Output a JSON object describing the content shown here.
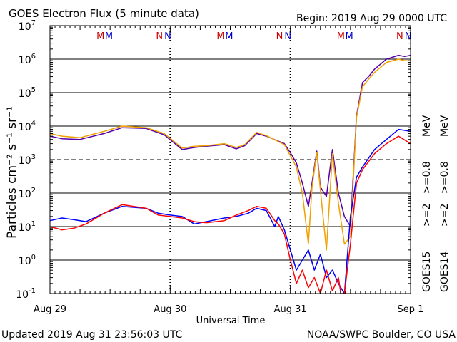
{
  "header": {
    "title": "GOES Electron Flux (5 minute data)",
    "begin": "Begin: 2019 Aug 29 0000 UTC"
  },
  "footer": {
    "updated": "Updated 2019 Aug 31 23:56:03 UTC",
    "credit": "NOAA/SWPC Boulder, CO USA"
  },
  "colors": {
    "goes15_ge08": "#5500aa",
    "goes14_ge08": "#f0a000",
    "goes15_ge2": "#0000ff",
    "goes14_ge2": "#ff0000",
    "marker_M": "#cc0000",
    "marker_N": "#0000cc"
  },
  "chart_data": {
    "type": "line",
    "y_scale": "log",
    "ylim": [
      0.1,
      10000000
    ],
    "y_ticks": [
      {
        "label_base": "10",
        "exp": "-1"
      },
      {
        "label_base": "10",
        "exp": "0"
      },
      {
        "label_base": "10",
        "exp": "1"
      },
      {
        "label_base": "10",
        "exp": "2"
      },
      {
        "label_base": "10",
        "exp": "3"
      },
      {
        "label_base": "10",
        "exp": "4"
      },
      {
        "label_base": "10",
        "exp": "5"
      },
      {
        "label_base": "10",
        "exp": "6"
      },
      {
        "label_base": "10",
        "exp": "7"
      }
    ],
    "ylabel": "Particles cm⁻² s⁻¹ sr⁻¹",
    "xlabel": "Universal Time",
    "x_ticks": [
      "Aug 29",
      "Aug 30",
      "Aug 31",
      "Sep 1"
    ],
    "xlim_days": [
      0,
      3
    ],
    "threshold_line": 1000,
    "magnetopause_markers": [
      {
        "label": "M",
        "day": 0.42,
        "color": "#cc0000"
      },
      {
        "label": "M",
        "day": 0.49,
        "color": "#0000cc"
      },
      {
        "label": "N",
        "day": 0.91,
        "color": "#cc0000"
      },
      {
        "label": "N",
        "day": 0.98,
        "color": "#0000cc"
      },
      {
        "label": "M",
        "day": 1.42,
        "color": "#cc0000"
      },
      {
        "label": "M",
        "day": 1.49,
        "color": "#0000cc"
      },
      {
        "label": "N",
        "day": 1.91,
        "color": "#cc0000"
      },
      {
        "label": "N",
        "day": 1.98,
        "color": "#0000cc"
      },
      {
        "label": "M",
        "day": 2.42,
        "color": "#cc0000"
      },
      {
        "label": "M",
        "day": 2.49,
        "color": "#0000cc"
      },
      {
        "label": "N",
        "day": 2.91,
        "color": "#cc0000"
      },
      {
        "label": "N",
        "day": 2.98,
        "color": "#0000cc"
      }
    ],
    "legend": {
      "placement": "right",
      "satellites": [
        "GOES15",
        "GOES14"
      ],
      "ge08": [
        ">=0.8",
        ">=0.8"
      ],
      "ge2": [
        ">=2",
        ">=2"
      ],
      "unit": "MeV"
    },
    "series": [
      {
        "name": "GOES15 >=0.8 MeV",
        "color": "#5500aa",
        "x": [
          0,
          0.1,
          0.25,
          0.45,
          0.6,
          0.8,
          0.95,
          1.1,
          1.2,
          1.3,
          1.45,
          1.55,
          1.62,
          1.72,
          1.8,
          1.95,
          2.0,
          2.05,
          2.1,
          2.15,
          2.18,
          2.22,
          2.25,
          2.3,
          2.35,
          2.4,
          2.45,
          2.5,
          2.55,
          2.6,
          2.65,
          2.7,
          2.8,
          2.9,
          2.95,
          3.0
        ],
        "y": [
          5000,
          4200,
          4000,
          6000,
          9000,
          8500,
          5500,
          2000,
          2300,
          2500,
          2800,
          2100,
          2600,
          6000,
          5000,
          3000,
          1600,
          800,
          200,
          40,
          200,
          1800,
          150,
          80,
          2000,
          100,
          20,
          10,
          20000,
          200000,
          300000,
          500000,
          1000000,
          1300000,
          1200000,
          1300000
        ]
      },
      {
        "name": "GOES14 >=0.8 MeV",
        "color": "#f0a000",
        "x": [
          0,
          0.1,
          0.25,
          0.45,
          0.6,
          0.8,
          0.95,
          1.1,
          1.2,
          1.3,
          1.45,
          1.55,
          1.62,
          1.72,
          1.8,
          1.95,
          2.0,
          2.05,
          2.1,
          2.15,
          2.18,
          2.22,
          2.25,
          2.3,
          2.35,
          2.4,
          2.45,
          2.5,
          2.55,
          2.6,
          2.65,
          2.7,
          2.8,
          2.9,
          2.95,
          3.0
        ],
        "y": [
          6000,
          5000,
          4500,
          7000,
          10000,
          9000,
          6000,
          2200,
          2500,
          2600,
          3000,
          2300,
          2800,
          6500,
          5200,
          2800,
          1300,
          600,
          100,
          3,
          150,
          1600,
          120,
          2,
          1500,
          50,
          3,
          5,
          18000,
          150000,
          250000,
          400000,
          800000,
          1000000,
          900000,
          900000
        ]
      },
      {
        "name": "GOES15 >=2 MeV",
        "color": "#0000ff",
        "x": [
          0,
          0.1,
          0.2,
          0.3,
          0.45,
          0.6,
          0.8,
          0.9,
          1.0,
          1.1,
          1.2,
          1.3,
          1.45,
          1.55,
          1.65,
          1.72,
          1.8,
          1.87,
          1.9,
          1.95,
          2.0,
          2.05,
          2.1,
          2.15,
          2.2,
          2.25,
          2.3,
          2.35,
          2.4,
          2.42,
          2.45,
          2.5,
          2.55,
          2.6,
          2.7,
          2.8,
          2.9,
          3.0
        ],
        "y": [
          15,
          18,
          16,
          14,
          25,
          40,
          35,
          25,
          22,
          20,
          12,
          14,
          18,
          20,
          25,
          35,
          30,
          10,
          20,
          8,
          2,
          0.5,
          1,
          2,
          0.5,
          1.5,
          0.3,
          0.5,
          0.2,
          0.15,
          0.1,
          20,
          300,
          600,
          2000,
          4000,
          8000,
          7000
        ]
      },
      {
        "name": "GOES14 >=2 MeV",
        "color": "#ff0000",
        "x": [
          0,
          0.1,
          0.2,
          0.3,
          0.45,
          0.6,
          0.8,
          0.9,
          1.0,
          1.1,
          1.2,
          1.3,
          1.45,
          1.55,
          1.65,
          1.72,
          1.8,
          1.87,
          1.9,
          1.95,
          2.0,
          2.05,
          2.1,
          2.15,
          2.2,
          2.25,
          2.3,
          2.35,
          2.4,
          2.42,
          2.45,
          2.5,
          2.55,
          2.6,
          2.7,
          2.8,
          2.9,
          3.0
        ],
        "y": [
          10,
          8,
          9,
          12,
          25,
          45,
          35,
          22,
          20,
          18,
          14,
          13,
          15,
          22,
          30,
          40,
          35,
          15,
          12,
          6,
          1,
          0.2,
          0.5,
          0.15,
          0.3,
          0.1,
          0.5,
          0.12,
          0.3,
          0.1,
          0.1,
          3,
          200,
          500,
          1500,
          3000,
          5000,
          3000
        ]
      }
    ]
  }
}
